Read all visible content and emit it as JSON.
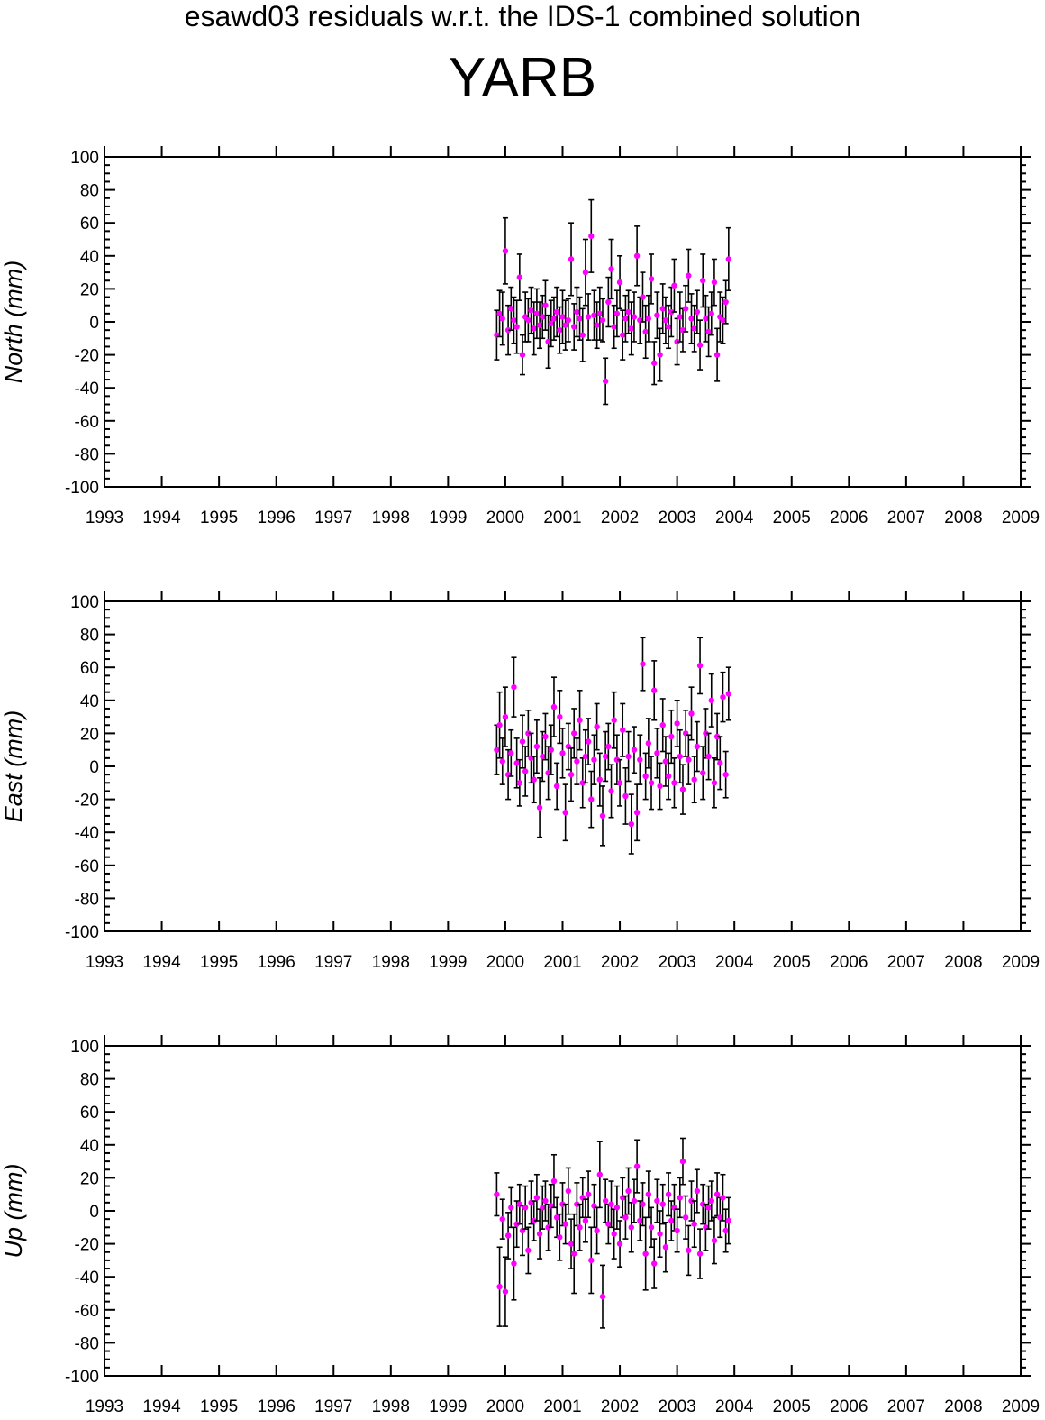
{
  "figure": {
    "supertitle": "esawd03 residuals w.r.t. the IDS-1 combined solution",
    "title": "YARB"
  },
  "colors": {
    "marker": "#ff00ff",
    "errorbar": "#000000",
    "axes": "#000000"
  },
  "chart_data": [
    {
      "type": "scatter",
      "ylabel": "North (mm)",
      "xlim": [
        1993,
        2009
      ],
      "ylim": [
        -100,
        100
      ],
      "xticks": [
        "1993",
        "1994",
        "1995",
        "1996",
        "1997",
        "1998",
        "1999",
        "2000",
        "2001",
        "2002",
        "2003",
        "2004",
        "2005",
        "2006",
        "2007",
        "2008",
        "2009"
      ],
      "yticks": [
        "100",
        "80",
        "60",
        "40",
        "20",
        "0",
        "-20",
        "-40",
        "-60",
        "-80",
        "-100"
      ],
      "grid": false,
      "series": [
        {
          "x": [
            1999.85,
            1999.9,
            1999.95,
            2000.0,
            2000.05,
            2000.1,
            2000.15,
            2000.2,
            2000.25,
            2000.3,
            2000.35,
            2000.4,
            2000.45,
            2000.5,
            2000.55,
            2000.6,
            2000.65,
            2000.7,
            2000.75,
            2000.8,
            2000.85,
            2000.9,
            2000.95,
            2001.0,
            2001.05,
            2001.1,
            2001.15,
            2001.2,
            2001.25,
            2001.3,
            2001.35,
            2001.4,
            2001.45,
            2001.5,
            2001.55,
            2001.6,
            2001.65,
            2001.7,
            2001.75,
            2001.8,
            2001.85,
            2001.9,
            2001.95,
            2002.0,
            2002.05,
            2002.1,
            2002.15,
            2002.2,
            2002.25,
            2002.3,
            2002.35,
            2002.4,
            2002.45,
            2002.5,
            2002.55,
            2002.6,
            2002.65,
            2002.7,
            2002.75,
            2002.8,
            2002.85,
            2002.9,
            2002.95,
            2003.0,
            2003.05,
            2003.1,
            2003.15,
            2003.2,
            2003.25,
            2003.3,
            2003.35,
            2003.4,
            2003.45,
            2003.5,
            2003.55,
            2003.6,
            2003.65,
            2003.7,
            2003.75,
            2003.8,
            2003.85,
            2003.9
          ],
          "y": [
            -8,
            5,
            2,
            43,
            -5,
            8,
            1,
            -3,
            27,
            -20,
            3,
            1,
            7,
            -4,
            5,
            -2,
            3,
            10,
            -12,
            -1,
            2,
            6,
            -5,
            3,
            -2,
            1,
            38,
            -3,
            6,
            2,
            -8,
            30,
            3,
            52,
            4,
            -2,
            5,
            1,
            -36,
            12,
            32,
            -3,
            5,
            24,
            -8,
            2,
            6,
            -4,
            3,
            40,
            1,
            15,
            -6,
            2,
            26,
            -25,
            4,
            -20,
            8,
            1,
            -3,
            6,
            22,
            -12,
            3,
            -5,
            8,
            28,
            2,
            -4,
            6,
            -14,
            25,
            2,
            -6,
            5,
            24,
            -20,
            3,
            1,
            12,
            38
          ],
          "err": [
            15,
            14,
            16,
            20,
            15,
            13,
            14,
            16,
            14,
            12,
            15,
            13,
            14,
            16,
            15,
            14,
            13,
            15,
            16,
            14,
            13,
            15,
            14,
            16,
            15,
            13,
            22,
            14,
            15,
            13,
            16,
            20,
            14,
            22,
            15,
            14,
            16,
            13,
            14,
            15,
            18,
            13,
            14,
            16,
            15,
            14,
            13,
            16,
            15,
            18,
            14,
            15,
            16,
            14,
            15,
            13,
            14,
            16,
            15,
            14,
            13,
            15,
            16,
            14,
            15,
            13,
            14,
            16,
            15,
            14,
            13,
            15,
            16,
            14,
            15,
            13,
            14,
            16,
            15,
            14,
            13,
            19
          ]
        }
      ]
    },
    {
      "type": "scatter",
      "ylabel": "East (mm)",
      "xlim": [
        1993,
        2009
      ],
      "ylim": [
        -100,
        100
      ],
      "xticks": [
        "1993",
        "1994",
        "1995",
        "1996",
        "1997",
        "1998",
        "1999",
        "2000",
        "2001",
        "2002",
        "2003",
        "2004",
        "2005",
        "2006",
        "2007",
        "2008",
        "2009"
      ],
      "yticks": [
        "100",
        "80",
        "60",
        "40",
        "20",
        "0",
        "-20",
        "-40",
        "-60",
        "-80",
        "-100"
      ],
      "grid": false,
      "series": [
        {
          "x": [
            1999.85,
            1999.9,
            1999.95,
            2000.0,
            2000.05,
            2000.1,
            2000.15,
            2000.2,
            2000.25,
            2000.3,
            2000.35,
            2000.4,
            2000.45,
            2000.5,
            2000.55,
            2000.6,
            2000.65,
            2000.7,
            2000.75,
            2000.8,
            2000.85,
            2000.9,
            2000.95,
            2001.0,
            2001.05,
            2001.1,
            2001.15,
            2001.2,
            2001.25,
            2001.3,
            2001.35,
            2001.4,
            2001.45,
            2001.5,
            2001.55,
            2001.6,
            2001.65,
            2001.7,
            2001.75,
            2001.8,
            2001.85,
            2001.9,
            2001.95,
            2002.0,
            2002.05,
            2002.1,
            2002.15,
            2002.2,
            2002.25,
            2002.3,
            2002.35,
            2002.4,
            2002.45,
            2002.5,
            2002.55,
            2002.6,
            2002.65,
            2002.7,
            2002.75,
            2002.8,
            2002.85,
            2002.9,
            2002.95,
            2003.0,
            2003.05,
            2003.1,
            2003.15,
            2003.2,
            2003.25,
            2003.3,
            2003.35,
            2003.4,
            2003.45,
            2003.5,
            2003.55,
            2003.6,
            2003.65,
            2003.7,
            2003.75,
            2003.8,
            2003.85,
            2003.9
          ],
          "y": [
            10,
            25,
            3,
            30,
            -5,
            8,
            48,
            2,
            -10,
            15,
            -3,
            20,
            5,
            -8,
            12,
            -25,
            6,
            18,
            -4,
            10,
            36,
            -12,
            30,
            8,
            -28,
            12,
            -5,
            20,
            3,
            28,
            -10,
            6,
            15,
            -20,
            4,
            24,
            -8,
            -30,
            6,
            12,
            -15,
            28,
            4,
            -10,
            22,
            -18,
            6,
            -35,
            10,
            -28,
            4,
            62,
            -6,
            14,
            -10,
            46,
            8,
            -12,
            25,
            3,
            -6,
            18,
            -10,
            26,
            6,
            -14,
            20,
            4,
            32,
            -8,
            12,
            61,
            -4,
            20,
            6,
            40,
            -10,
            18,
            2,
            42,
            -5,
            44
          ],
          "err": [
            15,
            20,
            14,
            18,
            15,
            14,
            18,
            15,
            14,
            16,
            15,
            14,
            15,
            14,
            16,
            18,
            15,
            14,
            16,
            15,
            18,
            14,
            16,
            15,
            17,
            14,
            16,
            15,
            14,
            18,
            15,
            16,
            14,
            17,
            15,
            14,
            16,
            18,
            15,
            14,
            16,
            17,
            15,
            14,
            16,
            17,
            15,
            18,
            14,
            17,
            15,
            16,
            14,
            15,
            16,
            18,
            15,
            14,
            16,
            15,
            14,
            16,
            15,
            14,
            16,
            15,
            14,
            15,
            16,
            14,
            15,
            17,
            16,
            15,
            14,
            16,
            15,
            14,
            16,
            15,
            14,
            16
          ]
        }
      ]
    },
    {
      "type": "scatter",
      "ylabel": "Up (mm)",
      "xlim": [
        1993,
        2009
      ],
      "ylim": [
        -100,
        100
      ],
      "xticks": [
        "1993",
        "1994",
        "1995",
        "1996",
        "1997",
        "1998",
        "1999",
        "2000",
        "2001",
        "2002",
        "2003",
        "2004",
        "2005",
        "2006",
        "2007",
        "2008",
        "2009"
      ],
      "yticks": [
        "100",
        "80",
        "60",
        "40",
        "20",
        "0",
        "-20",
        "-40",
        "-60",
        "-80",
        "-100"
      ],
      "grid": false,
      "series": [
        {
          "x": [
            1999.85,
            1999.9,
            1999.95,
            2000.0,
            2000.05,
            2000.1,
            2000.15,
            2000.2,
            2000.25,
            2000.3,
            2000.35,
            2000.4,
            2000.45,
            2000.5,
            2000.55,
            2000.6,
            2000.65,
            2000.7,
            2000.75,
            2000.8,
            2000.85,
            2000.9,
            2000.95,
            2001.0,
            2001.05,
            2001.1,
            2001.15,
            2001.2,
            2001.25,
            2001.3,
            2001.35,
            2001.4,
            2001.45,
            2001.5,
            2001.55,
            2001.6,
            2001.65,
            2001.7,
            2001.75,
            2001.8,
            2001.85,
            2001.9,
            2001.95,
            2002.0,
            2002.05,
            2002.1,
            2002.15,
            2002.2,
            2002.25,
            2002.3,
            2002.35,
            2002.4,
            2002.45,
            2002.5,
            2002.55,
            2002.6,
            2002.65,
            2002.7,
            2002.75,
            2002.8,
            2002.85,
            2002.9,
            2002.95,
            2003.0,
            2003.05,
            2003.1,
            2003.15,
            2003.2,
            2003.25,
            2003.3,
            2003.35,
            2003.4,
            2003.45,
            2003.5,
            2003.55,
            2003.6,
            2003.65,
            2003.7,
            2003.75,
            2003.8,
            2003.85,
            2003.9
          ],
          "y": [
            10,
            -46,
            -5,
            -49,
            -15,
            2,
            -32,
            -8,
            4,
            -12,
            2,
            -24,
            5,
            -6,
            8,
            -14,
            2,
            6,
            -10,
            3,
            18,
            -4,
            -16,
            4,
            -8,
            12,
            -20,
            -26,
            4,
            -10,
            8,
            -6,
            10,
            -30,
            3,
            -12,
            22,
            -52,
            6,
            -8,
            4,
            -14,
            2,
            -20,
            8,
            -4,
            12,
            -10,
            6,
            27,
            -6,
            4,
            -26,
            10,
            -10,
            -32,
            6,
            -14,
            4,
            -22,
            10,
            -6,
            2,
            -12,
            8,
            30,
            -4,
            -24,
            6,
            -8,
            12,
            -26,
            4,
            -10,
            2,
            6,
            -18,
            10,
            -4,
            8,
            -12,
            -6
          ],
          "err": [
            13,
            24,
            12,
            21,
            14,
            12,
            22,
            14,
            12,
            15,
            13,
            14,
            13,
            12,
            14,
            15,
            13,
            12,
            14,
            13,
            16,
            12,
            14,
            13,
            12,
            14,
            15,
            24,
            13,
            14,
            12,
            13,
            14,
            20,
            13,
            14,
            20,
            19,
            13,
            12,
            14,
            15,
            13,
            14,
            12,
            13,
            14,
            15,
            13,
            16,
            12,
            13,
            22,
            14,
            12,
            15,
            13,
            14,
            12,
            15,
            13,
            12,
            14,
            13,
            12,
            14,
            13,
            15,
            12,
            14,
            13,
            15,
            12,
            14,
            13,
            12,
            14,
            13,
            12,
            14,
            13,
            14
          ]
        }
      ]
    }
  ]
}
